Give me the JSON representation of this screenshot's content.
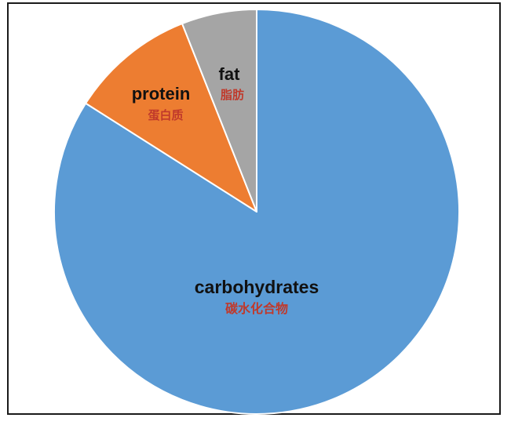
{
  "chart_data": {
    "type": "pie",
    "title": "",
    "start": "12 o'clock",
    "direction": "clockwise",
    "slices": [
      {
        "label": "carbohydrates",
        "label_zh": "碳水化合物",
        "value": 84,
        "color": "#5b9bd5"
      },
      {
        "label": "protein",
        "label_zh": "蛋白质",
        "value": 10,
        "color": "#ed7d31"
      },
      {
        "label": "fat",
        "label_zh": "脂肪",
        "value": 6,
        "color": "#a5a5a5"
      }
    ],
    "label_color_en": "#111111",
    "label_color_zh": "#c0392b",
    "slice_border_color": "#ffffff",
    "legend": "none"
  }
}
